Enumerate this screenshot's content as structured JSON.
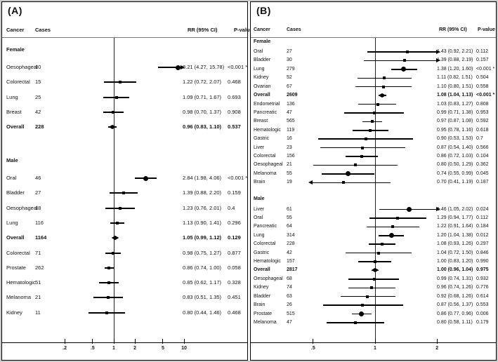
{
  "chart_data": [
    {
      "type": "forest",
      "panel_label": "(A)",
      "xscale": "log",
      "ref_line": 1,
      "xticks": [
        ".2",
        ".5",
        "1",
        "2",
        "5",
        "10"
      ],
      "columns": {
        "cancer": "Cancer",
        "cases": "Cases",
        "rr": "RR (95% CI)",
        "p": "P-value"
      },
      "groups": [
        {
          "label": "Female",
          "rows": [
            {
              "cancer": "Oesophageal",
              "cases": "10",
              "rr": 8.21,
              "lo": 4.27,
              "hi": 15.78,
              "rr_text": "8.21 (4.27, 15.78)",
              "p": "<0.001 *",
              "marker": "circle",
              "arrow": "right",
              "bold": false
            },
            {
              "cancer": "Colorectal",
              "cases": "15",
              "rr": 1.22,
              "lo": 0.72,
              "hi": 2.07,
              "rr_text": "1.22 (0.72, 2.07)",
              "p": "0.468",
              "marker": "sq",
              "arrow": null,
              "bold": false
            },
            {
              "cancer": "Lung",
              "cases": "25",
              "rr": 1.09,
              "lo": 0.71,
              "hi": 1.67,
              "rr_text": "1.09 (0.71, 1.67)",
              "p": "0.693",
              "marker": "sq",
              "arrow": null,
              "bold": false
            },
            {
              "cancer": "Breast",
              "cases": "42",
              "rr": 0.98,
              "lo": 0.7,
              "hi": 1.37,
              "rr_text": "0.98 (0.70, 1.37)",
              "p": "0.908",
              "marker": "sq",
              "arrow": null,
              "bold": false
            },
            {
              "cancer": "Overall",
              "cases": "228",
              "rr": 0.96,
              "lo": 0.83,
              "hi": 1.1,
              "rr_text": "0.96 (0.83, 1.10)",
              "p": "0.537",
              "marker": "diamond",
              "arrow": null,
              "bold": true
            }
          ]
        },
        {
          "label": "Male",
          "rows": [
            {
              "cancer": "Oral",
              "cases": "46",
              "rr": 2.84,
              "lo": 1.98,
              "hi": 4.06,
              "rr_text": "2.84 (1.98, 4.06)",
              "p": "<0.001 *",
              "marker": "circle",
              "arrow": null,
              "bold": false
            },
            {
              "cancer": "Bladder",
              "cases": "27",
              "rr": 1.39,
              "lo": 0.88,
              "hi": 2.2,
              "rr_text": "1.39 (0.88, 2.20)",
              "p": "0.159",
              "marker": "sq",
              "arrow": null,
              "bold": false
            },
            {
              "cancer": "Oesophageal",
              "cases": "18",
              "rr": 1.23,
              "lo": 0.76,
              "hi": 2.01,
              "rr_text": "1.23 (0.76, 2.01)",
              "p": "0.4",
              "marker": "sq",
              "arrow": null,
              "bold": false
            },
            {
              "cancer": "Lung",
              "cases": "116",
              "rr": 1.13,
              "lo": 0.9,
              "hi": 1.41,
              "rr_text": "1.13 (0.90, 1.41)",
              "p": "0.296",
              "marker": "sq",
              "arrow": null,
              "bold": false
            },
            {
              "cancer": "Overall",
              "cases": "1164",
              "rr": 1.05,
              "lo": 0.99,
              "hi": 1.12,
              "rr_text": "1.05 (0.99, 1.12)",
              "p": "0.129",
              "marker": "diamond",
              "arrow": null,
              "bold": true
            },
            {
              "cancer": "Colorectal",
              "cases": "71",
              "rr": 0.98,
              "lo": 0.75,
              "hi": 1.27,
              "rr_text": "0.98 (0.75, 1.27)",
              "p": "0.877",
              "marker": "sq",
              "arrow": null,
              "bold": false
            },
            {
              "cancer": "Prostate",
              "cases": "262",
              "rr": 0.86,
              "lo": 0.74,
              "hi": 1.0,
              "rr_text": "0.86 (0.74, 1.00)",
              "p": "0.058",
              "marker": "sq",
              "arrow": null,
              "bold": false
            },
            {
              "cancer": "Hematologic",
              "cases": "51",
              "rr": 0.85,
              "lo": 0.62,
              "hi": 1.17,
              "rr_text": "0.85 (0.62, 1.17)",
              "p": "0.328",
              "marker": "sq",
              "arrow": null,
              "bold": false
            },
            {
              "cancer": "Melanoma",
              "cases": "21",
              "rr": 0.83,
              "lo": 0.51,
              "hi": 1.35,
              "rr_text": "0.83 (0.51, 1.35)",
              "p": "0.451",
              "marker": "sq",
              "arrow": null,
              "bold": false
            },
            {
              "cancer": "Kidney",
              "cases": "11",
              "rr": 0.8,
              "lo": 0.44,
              "hi": 1.46,
              "rr_text": "0.80 (0.44, 1.46)",
              "p": "0.468",
              "marker": "sq",
              "arrow": null,
              "bold": false
            }
          ]
        }
      ]
    },
    {
      "type": "forest",
      "panel_label": "(B)",
      "xscale": "log",
      "ref_line": 1,
      "xticks": [
        ".5",
        "1",
        "2"
      ],
      "columns": {
        "cancer": "Cancer",
        "cases": "Cases",
        "rr": "RR (95% CI)",
        "p": "P-value"
      },
      "groups": [
        {
          "label": "Female",
          "rows": [
            {
              "cancer": "Oral",
              "cases": "27",
              "rr": 1.43,
              "lo": 0.92,
              "hi": 2.21,
              "rr_text": "1.43 (0.92, 2.21)",
              "p": "0.112",
              "marker": "sq",
              "arrow": "right",
              "bold": false
            },
            {
              "cancer": "Bladder",
              "cases": "30",
              "rr": 1.39,
              "lo": 0.88,
              "hi": 2.19,
              "rr_text": "1.39 (0.88, 2.19)",
              "p": "0.157",
              "marker": "sq",
              "arrow": "right",
              "bold": false
            },
            {
              "cancer": "Lung",
              "cases": "279",
              "rr": 1.38,
              "lo": 1.2,
              "hi": 1.6,
              "rr_text": "1.38 (1.20, 1.60)",
              "p": "<0.001 *",
              "marker": "circle",
              "arrow": null,
              "bold": false
            },
            {
              "cancer": "Kidney",
              "cases": "52",
              "rr": 1.11,
              "lo": 0.82,
              "hi": 1.51,
              "rr_text": "1.11 (0.82, 1.51)",
              "p": "0.504",
              "marker": "sq",
              "arrow": null,
              "bold": false
            },
            {
              "cancer": "Ovarian",
              "cases": "67",
              "rr": 1.1,
              "lo": 0.8,
              "hi": 1.51,
              "rr_text": "1.10 (0.80, 1.51)",
              "p": "0.558",
              "marker": "sq",
              "arrow": null,
              "bold": false
            },
            {
              "cancer": "Overall",
              "cases": "2609",
              "rr": 1.08,
              "lo": 1.04,
              "hi": 1.13,
              "rr_text": "1.08 (1.04, 1.13)",
              "p": "<0.001 *",
              "marker": "diamond",
              "arrow": null,
              "bold": true
            },
            {
              "cancer": "Endometrial",
              "cases": "136",
              "rr": 1.03,
              "lo": 0.83,
              "hi": 1.27,
              "rr_text": "1.03 (0.83, 1.27)",
              "p": "0.808",
              "marker": "sq",
              "arrow": null,
              "bold": false
            },
            {
              "cancer": "Pancreatic",
              "cases": "47",
              "rr": 0.99,
              "lo": 0.71,
              "hi": 1.38,
              "rr_text": "0.99 (0.71, 1.38)",
              "p": "0.953",
              "marker": "sq",
              "arrow": null,
              "bold": false
            },
            {
              "cancer": "Breast",
              "cases": "565",
              "rr": 0.97,
              "lo": 0.87,
              "hi": 1.08,
              "rr_text": "0.97 (0.87, 1.08)",
              "p": "0.592",
              "marker": "sq",
              "arrow": null,
              "bold": false
            },
            {
              "cancer": "Hematologic",
              "cases": "119",
              "rr": 0.95,
              "lo": 0.78,
              "hi": 1.16,
              "rr_text": "0.95 (0.78, 1.16)",
              "p": "0.618",
              "marker": "sq",
              "arrow": null,
              "bold": false
            },
            {
              "cancer": "Gastric",
              "cases": "16",
              "rr": 0.9,
              "lo": 0.53,
              "hi": 1.53,
              "rr_text": "0.90 (0.53, 1.53)",
              "p": "0.7",
              "marker": "sq",
              "arrow": null,
              "bold": false
            },
            {
              "cancer": "Liver",
              "cases": "23",
              "rr": 0.87,
              "lo": 0.54,
              "hi": 1.4,
              "rr_text": "0.87 (0.54, 1.40)",
              "p": "0.566",
              "marker": "sq",
              "arrow": null,
              "bold": false
            },
            {
              "cancer": "Colorectal",
              "cases": "156",
              "rr": 0.86,
              "lo": 0.72,
              "hi": 1.03,
              "rr_text": "0.86 (0.72, 1.03)",
              "p": "0.104",
              "marker": "sq",
              "arrow": null,
              "bold": false
            },
            {
              "cancer": "Oesophageal",
              "cases": "21",
              "rr": 0.8,
              "lo": 0.5,
              "hi": 1.29,
              "rr_text": "0.80 (0.50, 1.29)",
              "p": "0.362",
              "marker": "sq",
              "arrow": null,
              "bold": false
            },
            {
              "cancer": "Melanoma",
              "cases": "55",
              "rr": 0.74,
              "lo": 0.55,
              "hi": 0.99,
              "rr_text": "0.74 (0.55, 0.99)",
              "p": "0.045",
              "marker": "circle",
              "arrow": null,
              "bold": false
            },
            {
              "cancer": "Brain",
              "cases": "19",
              "rr": 0.7,
              "lo": 0.41,
              "hi": 1.19,
              "rr_text": "0.70 (0.41, 1.19)",
              "p": "0.187",
              "marker": "sq",
              "arrow": "left",
              "bold": false
            }
          ]
        },
        {
          "label": "Male",
          "rows": [
            {
              "cancer": "Liver",
              "cases": "61",
              "rr": 1.46,
              "lo": 1.05,
              "hi": 2.02,
              "rr_text": "1.46 (1.05, 2.02)",
              "p": "0.024",
              "marker": "circle",
              "arrow": "right",
              "bold": false
            },
            {
              "cancer": "Oral",
              "cases": "55",
              "rr": 1.29,
              "lo": 0.94,
              "hi": 1.77,
              "rr_text": "1.29 (0.94, 1.77)",
              "p": "0.112",
              "marker": "sq",
              "arrow": null,
              "bold": false
            },
            {
              "cancer": "Pancreatic",
              "cases": "64",
              "rr": 1.22,
              "lo": 0.91,
              "hi": 1.64,
              "rr_text": "1.22 (0.91, 1.64)",
              "p": "0.184",
              "marker": "sq",
              "arrow": null,
              "bold": false
            },
            {
              "cancer": "Lung",
              "cases": "314",
              "rr": 1.2,
              "lo": 1.04,
              "hi": 1.38,
              "rr_text": "1.20 (1.04, 1.38)",
              "p": "0.012",
              "marker": "circle",
              "arrow": null,
              "bold": false
            },
            {
              "cancer": "Colorectal",
              "cases": "228",
              "rr": 1.08,
              "lo": 0.93,
              "hi": 1.26,
              "rr_text": "1.08 (0.93, 1.26)",
              "p": "0.297",
              "marker": "sq",
              "arrow": null,
              "bold": false
            },
            {
              "cancer": "Gastric",
              "cases": "42",
              "rr": 1.04,
              "lo": 0.72,
              "hi": 1.5,
              "rr_text": "1.04 (0.72, 1.50)",
              "p": "0.846",
              "marker": "sq",
              "arrow": null,
              "bold": false
            },
            {
              "cancer": "Hematologic",
              "cases": "157",
              "rr": 1.0,
              "lo": 0.83,
              "hi": 1.2,
              "rr_text": "1.00 (0.83, 1.20)",
              "p": "0.990",
              "marker": "sq",
              "arrow": null,
              "bold": false
            },
            {
              "cancer": "Overall",
              "cases": "2817",
              "rr": 1.0,
              "lo": 0.96,
              "hi": 1.04,
              "rr_text": "1.00 (0.96, 1.04)",
              "p": "0.975",
              "marker": "diamond",
              "arrow": null,
              "bold": true
            },
            {
              "cancer": "Oesophageal",
              "cases": "68",
              "rr": 0.99,
              "lo": 0.74,
              "hi": 1.31,
              "rr_text": "0.99 (0.74, 1.31)",
              "p": "0.932",
              "marker": "sq",
              "arrow": null,
              "bold": false
            },
            {
              "cancer": "Kidney",
              "cases": "74",
              "rr": 0.96,
              "lo": 0.74,
              "hi": 1.26,
              "rr_text": "0.96 (0.74, 1.26)",
              "p": "0.776",
              "marker": "sq",
              "arrow": null,
              "bold": false
            },
            {
              "cancer": "Bladder",
              "cases": "63",
              "rr": 0.92,
              "lo": 0.68,
              "hi": 1.26,
              "rr_text": "0.92 (0.68, 1.26)",
              "p": "0.614",
              "marker": "sq",
              "arrow": null,
              "bold": false
            },
            {
              "cancer": "Brain",
              "cases": "26",
              "rr": 0.87,
              "lo": 0.56,
              "hi": 1.37,
              "rr_text": "0.87 (0.56, 1.37)",
              "p": "0.553",
              "marker": "sq",
              "arrow": null,
              "bold": false
            },
            {
              "cancer": "Prostate",
              "cases": "515",
              "rr": 0.86,
              "lo": 0.77,
              "hi": 0.96,
              "rr_text": "0.86 (0.77, 0.96)",
              "p": "0.006",
              "marker": "circle",
              "arrow": null,
              "bold": false
            },
            {
              "cancer": "Melanoma",
              "cases": "47",
              "rr": 0.8,
              "lo": 0.58,
              "hi": 1.11,
              "rr_text": "0.80 (0.58, 1.11)",
              "p": "0.179",
              "marker": "sq",
              "arrow": null,
              "bold": false
            }
          ]
        }
      ]
    }
  ]
}
